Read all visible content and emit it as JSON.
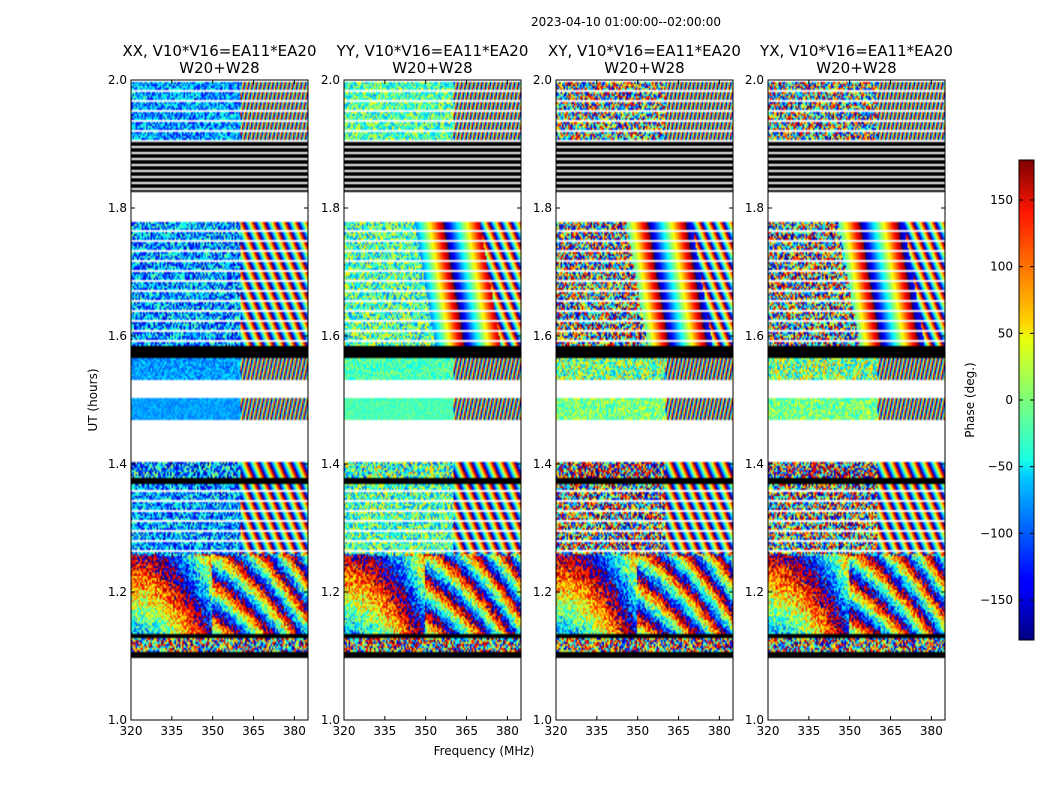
{
  "figure": {
    "suptitle": "2023-04-10  01:00:00--02:00:00",
    "xlabel": "Frequency (MHz)",
    "ylabel": "UT (hours)"
  },
  "chart_data": [
    {
      "type": "heatmap",
      "title_line1": "XX, V10*V16=EA11*EA20",
      "title_line2": "W20+W28",
      "pol": "XX",
      "xlim": [
        320,
        385
      ],
      "ylim": [
        1.0,
        2.0
      ],
      "xticks": [
        320,
        335,
        350,
        365,
        380
      ],
      "yticks": [
        1.0,
        1.2,
        1.4,
        1.6,
        1.8,
        2.0
      ]
    },
    {
      "type": "heatmap",
      "title_line1": "YY, V10*V16=EA11*EA20",
      "title_line2": "W20+W28",
      "pol": "YY",
      "xlim": [
        320,
        385
      ],
      "ylim": [
        1.0,
        2.0
      ],
      "xticks": [
        320,
        335,
        350,
        365,
        380
      ],
      "yticks": [
        1.0,
        1.2,
        1.4,
        1.6,
        1.8,
        2.0
      ]
    },
    {
      "type": "heatmap",
      "title_line1": "XY, V10*V16=EA11*EA20",
      "title_line2": "W20+W28",
      "pol": "XY",
      "xlim": [
        320,
        385
      ],
      "ylim": [
        1.0,
        2.0
      ],
      "xticks": [
        320,
        335,
        350,
        365,
        380
      ],
      "yticks": [
        1.0,
        1.2,
        1.4,
        1.6,
        1.8,
        2.0
      ]
    },
    {
      "type": "heatmap",
      "title_line1": "YX, V10*V16=EA11*EA20",
      "title_line2": "W20+W28",
      "pol": "YX",
      "xlim": [
        320,
        385
      ],
      "ylim": [
        1.0,
        2.0
      ],
      "xticks": [
        320,
        335,
        350,
        365,
        380
      ],
      "yticks": [
        1.0,
        1.2,
        1.4,
        1.6,
        1.8,
        2.0
      ]
    }
  ],
  "time_segments": [
    {
      "type": "flagged",
      "t0": 1.097,
      "t1": 1.105
    },
    {
      "type": "data",
      "t0": 1.105,
      "t1": 1.127,
      "noise": 0.9
    },
    {
      "type": "flagged",
      "t0": 1.127,
      "t1": 1.133
    },
    {
      "type": "data",
      "t0": 1.133,
      "t1": 1.255,
      "noise": 0.35
    },
    {
      "type": "data",
      "t0": 1.255,
      "t1": 1.368,
      "noise": 0.55,
      "striped": true
    },
    {
      "type": "flagged",
      "t0": 1.368,
      "t1": 1.378
    },
    {
      "type": "data",
      "t0": 1.378,
      "t1": 1.402,
      "noise": 0.7
    },
    {
      "type": "blank",
      "t0": 1.402,
      "t1": 1.468
    },
    {
      "type": "data",
      "t0": 1.468,
      "t1": 1.502,
      "noise": 0.15,
      "flat": true
    },
    {
      "type": "blank",
      "t0": 1.502,
      "t1": 1.53
    },
    {
      "type": "data",
      "t0": 1.53,
      "t1": 1.567,
      "noise": 0.3,
      "flat": true
    },
    {
      "type": "flagged",
      "t0": 1.567,
      "t1": 1.585
    },
    {
      "type": "data",
      "t0": 1.585,
      "t1": 1.782,
      "noise": 0.55,
      "striped": true
    },
    {
      "type": "blank",
      "t0": 1.782,
      "t1": 1.825
    },
    {
      "type": "flagged",
      "t0": 1.825,
      "t1": 1.907,
      "lined": true
    },
    {
      "type": "data",
      "t0": 1.907,
      "t1": 2.0,
      "noise": 0.6,
      "flat": true,
      "striped": true
    }
  ],
  "colorbar": {
    "label": "Phase (deg.)",
    "vmin": -180,
    "vmax": 180,
    "ticks": [
      {
        "value": 150,
        "label": "150"
      },
      {
        "value": 100,
        "label": "100"
      },
      {
        "value": 50,
        "label": "50"
      },
      {
        "value": 0,
        "label": "0"
      },
      {
        "value": -50,
        "label": "−50"
      },
      {
        "value": -100,
        "label": "−100"
      },
      {
        "value": -150,
        "label": "−150"
      }
    ],
    "colormap": "jet"
  }
}
